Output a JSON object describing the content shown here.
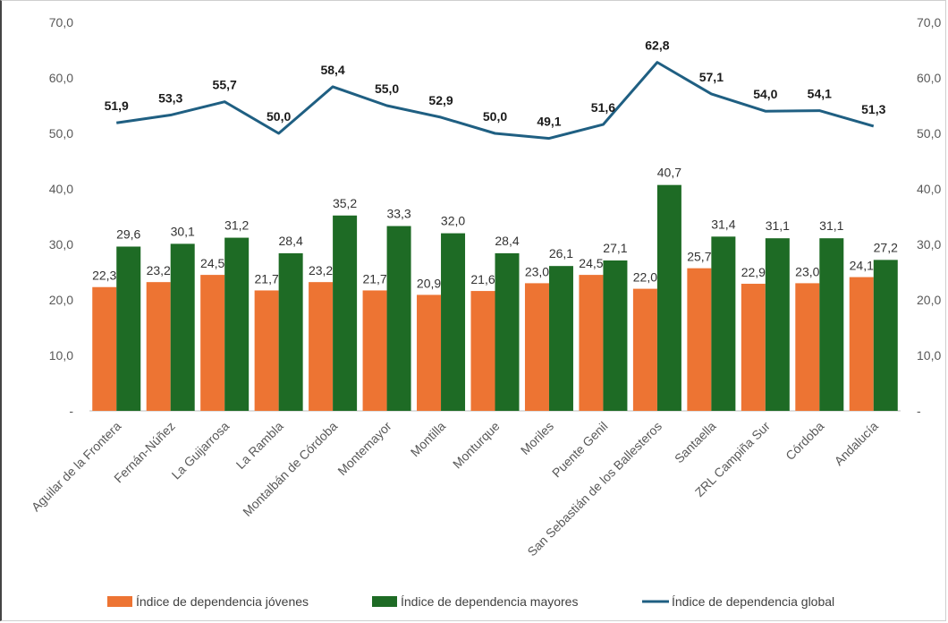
{
  "chart_data": {
    "type": "bar",
    "categories": [
      "Aguilar de la Frontera",
      "Fernán-Núñez",
      "La Guijarrosa",
      "La Rambla",
      "Montalbán de Córdoba",
      "Montemayor",
      "Montilla",
      "Monturque",
      "Moriles",
      "Puente Genil",
      "San Sebastián de los Ballesteros",
      "Santaella",
      "ZRL Campiña Sur",
      "Córdoba",
      "Andalucía"
    ],
    "series": [
      {
        "name": "Índice de dependencia jóvenes",
        "type": "bar",
        "color": "#ed7433",
        "values": [
          22.3,
          23.2,
          24.5,
          21.7,
          23.2,
          21.7,
          20.9,
          21.6,
          23.0,
          24.5,
          22.0,
          25.7,
          22.9,
          23.0,
          24.1
        ],
        "labels": [
          "22,3",
          "23,2",
          "24,5",
          "21,7",
          "23,2",
          "21,7",
          "20,9",
          "21,6",
          "23,0",
          "24,5",
          "22,0",
          "25,7",
          "22,9",
          "23,0",
          "24,1"
        ]
      },
      {
        "name": "Índice de dependencia mayores",
        "type": "bar",
        "color": "#1e6b25",
        "values": [
          29.6,
          30.1,
          31.2,
          28.4,
          35.2,
          33.3,
          32.0,
          28.4,
          26.1,
          27.1,
          40.7,
          31.4,
          31.1,
          31.1,
          27.2
        ],
        "labels": [
          "29,6",
          "30,1",
          "31,2",
          "28,4",
          "35,2",
          "33,3",
          "32,0",
          "28,4",
          "26,1",
          "27,1",
          "40,7",
          "31,4",
          "31,1",
          "31,1",
          "27,2"
        ]
      },
      {
        "name": "Índice de dependencia global",
        "type": "line",
        "color": "#1f5f82",
        "values": [
          51.9,
          53.3,
          55.7,
          50.0,
          58.4,
          55.0,
          52.9,
          50.0,
          49.1,
          51.6,
          62.8,
          57.1,
          54.0,
          54.1,
          51.3
        ],
        "labels": [
          "51,9",
          "53,3",
          "55,7",
          "50,0",
          "58,4",
          "55,0",
          "52,9",
          "50,0",
          "49,1",
          "51,6",
          "62,8",
          "57,1",
          "54,0",
          "54,1",
          "51,3"
        ]
      }
    ],
    "ylim": [
      0,
      70
    ],
    "y_ticks": [
      0,
      10,
      20,
      30,
      40,
      50,
      60,
      70
    ],
    "y_tick_labels": [
      "-",
      "10,0",
      "20,0",
      "30,0",
      "40,0",
      "50,0",
      "60,0",
      "70,0"
    ],
    "secondary_axis": true,
    "grid": false,
    "legend_position": "bottom"
  }
}
